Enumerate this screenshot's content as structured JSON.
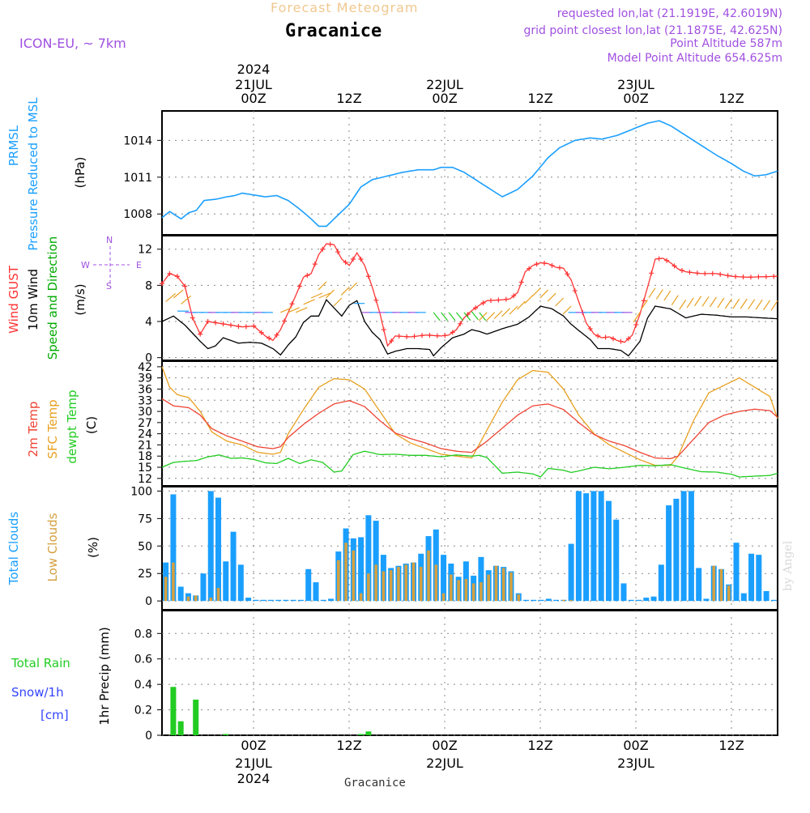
{
  "header": {
    "app_title": "Forecast Meteogram",
    "location": "Gracanice",
    "model": "ICON-EU,  ~ 7km",
    "requested": "requested lon,lat (21.1919E, 42.6019N)",
    "grid_point": "grid point closest lon,lat (21.1875E, 42.625N)",
    "point_altitude": "Point Altitude 587m",
    "model_altitude": "Model Point Altitude 654.625m",
    "watermark": "by Angel"
  },
  "time_axis": {
    "labels": [
      "00Z",
      "12Z",
      "00Z",
      "12Z",
      "00Z",
      "12Z"
    ],
    "day_labels": [
      "21JUL",
      "22JUL",
      "23JUL"
    ],
    "year": "2024",
    "footer": "Gracanice"
  },
  "colors": {
    "pressure": "#1a9fff",
    "gust": "#ff3333",
    "wind": "#000000",
    "wind_dir": "#00aa00",
    "temp2m": "#ee4433",
    "sfc": "#e8a020",
    "dewpt": "#22cc22",
    "total_clouds": "#1a9fff",
    "low_clouds": "#d4a040",
    "rain": "#22cc22",
    "snow": "#3344ff",
    "header_purple": "#a050e0",
    "header_orange": "#f0c890"
  },
  "panels": {
    "pressure": {
      "label_line1": "PRMSL",
      "label_line2": "Pressure Reduced to MSL",
      "unit": "(hPa)"
    },
    "wind": {
      "label_gust": "Wind GUST",
      "label_wind": "10m Wind",
      "label_dir": "Speed and Direction",
      "unit": "(m/s)",
      "compass_w": "W",
      "compass_e": "E",
      "compass_n": "N",
      "compass_s": "S"
    },
    "temp": {
      "label_2m": "2m Temp",
      "label_sfc": "SFC Temp",
      "label_dew": "dewpt Temp",
      "unit": "(C)"
    },
    "clouds": {
      "label_total": "Total Clouds",
      "label_low": "Low Clouds",
      "unit": "(%)"
    },
    "precip": {
      "label_rain": "Total  Rain",
      "label_snow": "Snow/1h",
      "label_snow_unit": "[cm]",
      "unit": "1hr Precip (mm)"
    }
  },
  "chart_data": [
    {
      "type": "line",
      "name": "pressure",
      "ylabel": "Pressure Reduced to MSL (hPa)",
      "ylim": [
        1006.3,
        1016.8
      ],
      "yticks": [
        1008,
        1011,
        1014
      ],
      "grid": true,
      "x": [
        -9,
        -7,
        -5,
        -3,
        -1,
        1,
        3,
        5,
        7,
        9,
        11,
        13,
        15,
        17,
        19,
        21,
        23,
        25,
        27,
        29,
        31,
        33,
        35,
        37,
        39,
        41,
        43,
        45,
        47,
        49,
        51,
        53,
        55,
        57,
        59,
        61,
        63,
        64
      ],
      "series": [
        {
          "name": "PRMSL",
          "values": [
            1007.8,
            1008.2,
            1007.9,
            1007.6,
            1008.1,
            1008.4,
            1009.1,
            1009.2,
            1009.2,
            1009.3,
            1009.5,
            1009.6,
            1009.7,
            1009.8,
            1009.8,
            1009.7,
            1009.6,
            1009.6,
            1009.5,
            1009.4,
            1009.3,
            1009.5,
            1009.8,
            1009.7,
            1009.6,
            1009.3,
            1008.7,
            1008.2,
            1007.7,
            1007.3,
            1006.9,
            1006.8,
            1007.1,
            1007.8,
            1008.6,
            1009.5,
            1010.2,
            1010.6
          ]
        }
      ],
      "series_full": [
        {
          "x": [
            -9,
            -6,
            -3,
            0,
            3,
            6,
            9,
            12,
            15,
            18,
            21,
            24,
            27,
            30,
            33,
            36,
            39,
            42,
            45,
            48,
            51,
            54,
            57,
            60,
            63,
            66,
            69,
            72,
            75,
            78,
            81,
            84,
            87,
            90,
            93,
            96,
            99,
            102,
            105,
            108,
            111,
            114,
            117,
            120,
            123,
            126,
            129,
            132,
            135,
            138,
            141,
            144,
            147,
            150,
            153,
            156,
            159,
            162,
            165,
            168,
            171,
            174,
            177,
            180,
            183,
            186,
            189,
            192,
            195,
            198,
            201,
            204,
            207,
            210,
            213,
            214
          ],
          "y": [
            1007.8,
            1008.1,
            1007.6,
            1008.1,
            1009.1,
            1009.2,
            1009.3,
            1009.5,
            1009.6,
            1009.8,
            1009.7,
            1009.6,
            1009.5,
            1009.4,
            1009.6,
            1009.5,
            1008.6,
            1007.6,
            1006.8,
            1006.9,
            1007.6,
            1008.5,
            1009.4,
            1010.5,
            1011.0,
            1011.2,
            1011.4,
            1011.6,
            1011.7,
            1011.6,
            1011.7,
            1011.9,
            1012.0,
            1011.6,
            1011.0,
            1010.4,
            1009.9,
            1009.7,
            1009.4,
            1009.7,
            1010.1,
            1010.9,
            1011.8,
            1012.9,
            1013.6,
            1013.9,
            1014.0,
            1014.0,
            1014.1,
            1014.4,
            1014.8,
            1015.3,
            1015.5,
            1015.1,
            1014.6,
            1013.8,
            1013.0,
            1012.5,
            1011.8,
            1011.3,
            1011.1,
            1011.3,
            1011.6,
            1011.9,
            1011.8,
            1011.6,
            1011.4,
            1011.3,
            1011.2,
            1011.1,
            1011.0,
            1011.1,
            1011.3,
            1011.4,
            1011.5,
            1011.5
          ]
        }
      ]
    }
  ]
}
